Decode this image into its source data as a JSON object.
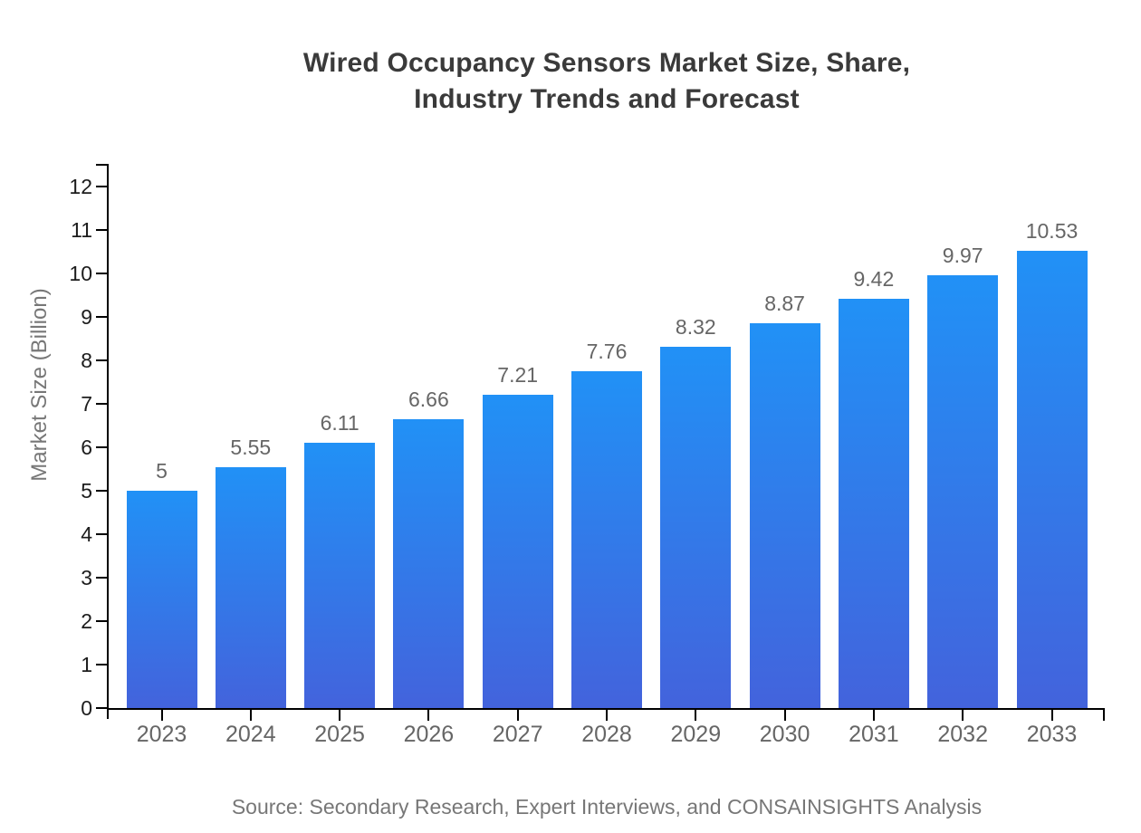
{
  "title_lines": [
    "Wired Occupancy Sensors Market Size, Share,",
    "Industry Trends and Forecast"
  ],
  "source_note": "Source: Secondary Research, Expert Interviews, and CONSAINSIGHTS Analysis",
  "chart_data": {
    "type": "bar",
    "title": "Wired Occupancy Sensors Market Size, Share, Industry Trends and Forecast",
    "categories": [
      "2023",
      "2024",
      "2025",
      "2026",
      "2027",
      "2028",
      "2029",
      "2030",
      "2031",
      "2032",
      "2033"
    ],
    "values": [
      5,
      5.55,
      6.11,
      6.66,
      7.21,
      7.76,
      8.32,
      8.87,
      9.42,
      9.97,
      10.53
    ],
    "value_labels": [
      "5",
      "5.55",
      "6.11",
      "6.66",
      "7.21",
      "7.76",
      "8.32",
      "8.87",
      "9.42",
      "9.97",
      "10.53"
    ],
    "xlabel": "",
    "ylabel": "Market Size (Billion)",
    "ylim": [
      0,
      12
    ],
    "yticks": [
      0,
      1,
      2,
      3,
      4,
      5,
      6,
      7,
      8,
      9,
      10,
      11,
      12
    ],
    "grid": false,
    "legend": false,
    "colors": {
      "bar_gradient_top": "#2191f6",
      "bar_gradient_bottom": "#4363dc",
      "axis": "#000000",
      "y_tick_label": "#1c1c1c",
      "x_tick_label": "#666666",
      "value_label": "#666666",
      "axis_title": "#777777",
      "title": "#3a3a3a",
      "source": "#777777",
      "background": "#ffffff"
    }
  }
}
